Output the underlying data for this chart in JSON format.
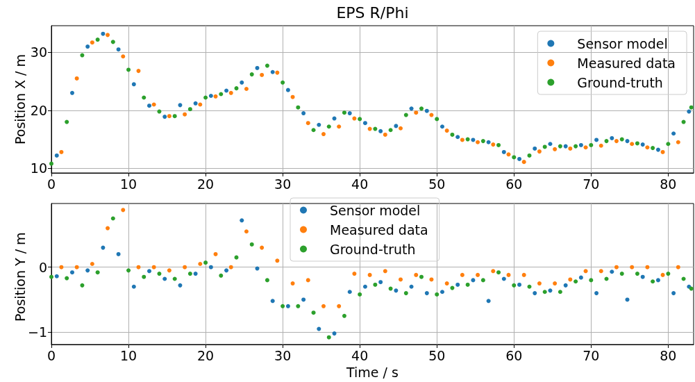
{
  "chart_data": [
    {
      "type": "scatter",
      "title": "EPS R/Phi",
      "ylabel": "Position X / m",
      "marker": "circle",
      "grid": true,
      "legend": "top right",
      "xlim": [
        0,
        83.3
      ],
      "xticks": [
        0,
        10,
        20,
        30,
        40,
        50,
        60,
        70,
        80
      ],
      "ylim": [
        9.2,
        34.6
      ],
      "yticks": [
        10,
        20,
        30
      ],
      "series": [
        {
          "name": "Sensor model",
          "color": "#1f77b4",
          "x": [
            0.7,
            2.7,
            4.7,
            6.7,
            8.7,
            10.7,
            12.7,
            14.7,
            16.7,
            18.7,
            20.7,
            22.7,
            24.7,
            26.7,
            28.7,
            30.7,
            32.7,
            34.7,
            36.7,
            38.7,
            40.7,
            42.7,
            44.7,
            46.7,
            48.7,
            50.7,
            52.7,
            54.7,
            56.7,
            58.7,
            60.7,
            62.7,
            64.7,
            66.7,
            68.7,
            70.7,
            72.7,
            74.7,
            76.7,
            78.7,
            80.7,
            82.7
          ],
          "values": [
            12.2,
            23,
            31,
            33.2,
            30.5,
            24.5,
            20.8,
            18.9,
            20.9,
            21.2,
            22.5,
            23.4,
            24.8,
            27.3,
            26.6,
            23.5,
            19.5,
            17.5,
            18.6,
            19.5,
            17.8,
            16.4,
            17.3,
            20.3,
            19.9,
            17.2,
            15.4,
            14.9,
            14.5,
            12.8,
            11.6,
            13.4,
            14.2,
            13.8,
            14,
            14.9,
            15.2,
            14.7,
            14.1,
            13.2,
            16,
            19.8
          ]
        },
        {
          "name": "Measured data",
          "color": "#ff7f0e",
          "x": [
            1.3,
            3.3,
            5.3,
            7.3,
            9.3,
            11.3,
            13.3,
            15.3,
            17.3,
            19.3,
            21.3,
            23.3,
            25.3,
            27.3,
            29.3,
            31.3,
            33.3,
            35.3,
            37.3,
            39.3,
            41.3,
            43.3,
            45.3,
            47.3,
            49.3,
            51.3,
            53.3,
            55.3,
            57.3,
            59.3,
            61.3,
            63.3,
            65.3,
            67.3,
            69.3,
            71.3,
            73.3,
            75.3,
            77.3,
            79.3,
            81.3
          ],
          "values": [
            12.8,
            25.5,
            31.7,
            33,
            29.3,
            26.8,
            21,
            19,
            19.3,
            21,
            22.4,
            23,
            23.7,
            26.1,
            26.5,
            22.3,
            17.8,
            15.9,
            17.2,
            18.6,
            16.8,
            15.8,
            16.9,
            19.6,
            19.2,
            16.5,
            14.9,
            14.5,
            14.1,
            12.4,
            11.1,
            12.9,
            13.3,
            13.4,
            13.6,
            13.9,
            14.7,
            14.2,
            13.6,
            12.8,
            14.5
          ]
        },
        {
          "name": "Ground-truth",
          "color": "#2ca02c",
          "x": [
            0,
            2,
            4,
            6,
            8,
            10,
            12,
            14,
            16,
            18,
            20,
            22,
            24,
            26,
            28,
            30,
            32,
            34,
            36,
            38,
            40,
            42,
            44,
            46,
            48,
            50,
            52,
            54,
            56,
            58,
            60,
            62,
            64,
            66,
            68,
            70,
            72,
            74,
            76,
            78,
            80,
            82,
            83
          ],
          "values": [
            10.8,
            18,
            29.5,
            32.2,
            31.8,
            27,
            22.2,
            19.8,
            19,
            20.2,
            22.2,
            22.8,
            23.8,
            26.2,
            27.7,
            24.8,
            20.5,
            16.6,
            17.2,
            19.6,
            18.5,
            16.8,
            16.6,
            19.2,
            20.3,
            18.5,
            15.8,
            15,
            14.7,
            14,
            11.9,
            12.2,
            13.7,
            13.8,
            13.8,
            14,
            14.7,
            15,
            14.3,
            13.5,
            14.2,
            18,
            20.5
          ]
        }
      ]
    },
    {
      "type": "scatter",
      "xlabel": "Time / s",
      "ylabel": "Position Y / m",
      "marker": "circle",
      "grid": true,
      "legend": "top",
      "xlim": [
        0,
        83.3
      ],
      "xticks": [
        0,
        10,
        20,
        30,
        40,
        50,
        60,
        70,
        80
      ],
      "ylim": [
        -1.19,
        0.98
      ],
      "yticks": [
        {
          "value": -1,
          "label": "−1"
        },
        0
      ],
      "series": [
        {
          "name": "Sensor model",
          "color": "#1f77b4",
          "x": [
            0.7,
            2.7,
            4.7,
            6.7,
            8.7,
            10.7,
            12.7,
            14.7,
            16.7,
            18.7,
            20.7,
            22.7,
            24.7,
            26.7,
            28.7,
            30.7,
            32.7,
            34.7,
            36.7,
            38.7,
            40.7,
            42.7,
            44.7,
            46.7,
            48.7,
            50.7,
            52.7,
            54.7,
            56.7,
            58.7,
            60.7,
            62.7,
            64.7,
            66.7,
            68.7,
            70.7,
            72.7,
            74.7,
            76.7,
            78.7,
            80.7,
            82.7
          ],
          "values": [
            -0.14,
            -0.08,
            -0.05,
            0.3,
            0.2,
            -0.3,
            -0.06,
            -0.18,
            -0.28,
            -0.1,
            0,
            -0.05,
            0.72,
            -0.02,
            -0.52,
            -0.6,
            -0.5,
            -0.95,
            -1.02,
            -0.38,
            -0.3,
            -0.23,
            -0.36,
            -0.3,
            -0.4,
            -0.38,
            -0.27,
            -0.2,
            -0.52,
            -0.18,
            -0.27,
            -0.4,
            -0.36,
            -0.28,
            -0.16,
            -0.4,
            -0.07,
            -0.5,
            -0.15,
            -0.2,
            -0.4,
            -0.3
          ]
        },
        {
          "name": "Measured data",
          "color": "#ff7f0e",
          "x": [
            1.3,
            3.3,
            5.3,
            7.3,
            9.3,
            11.3,
            13.3,
            15.3,
            17.3,
            19.3,
            21.3,
            23.3,
            25.3,
            27.3,
            29.3,
            31.3,
            33.3,
            35.3,
            37.3,
            39.3,
            41.3,
            43.3,
            45.3,
            47.3,
            49.3,
            51.3,
            53.3,
            55.3,
            57.3,
            59.3,
            61.3,
            63.3,
            65.3,
            67.3,
            69.3,
            71.3,
            73.3,
            75.3,
            77.3,
            79.3,
            81.3
          ],
          "values": [
            0,
            0,
            0.05,
            0.6,
            0.88,
            0,
            0,
            -0.05,
            0,
            0.05,
            0.2,
            0,
            0.55,
            0.3,
            0.1,
            -0.25,
            -0.2,
            -0.6,
            -0.6,
            -0.1,
            -0.12,
            -0.06,
            -0.19,
            -0.12,
            -0.19,
            -0.25,
            -0.12,
            -0.12,
            -0.06,
            -0.12,
            -0.12,
            -0.25,
            -0.25,
            -0.19,
            -0.06,
            -0.06,
            0,
            0,
            0,
            -0.12,
            0
          ]
        },
        {
          "name": "Ground-truth",
          "color": "#2ca02c",
          "x": [
            0,
            2,
            4,
            6,
            8,
            10,
            12,
            14,
            16,
            18,
            20,
            22,
            24,
            26,
            28,
            30,
            32,
            34,
            36,
            38,
            40,
            42,
            44,
            46,
            48,
            50,
            52,
            54,
            56,
            58,
            60,
            62,
            64,
            66,
            68,
            70,
            72,
            74,
            76,
            78,
            80,
            82,
            83
          ],
          "values": [
            -0.15,
            -0.17,
            -0.28,
            -0.08,
            0.75,
            -0.05,
            -0.15,
            -0.1,
            -0.18,
            -0.1,
            0.07,
            -0.13,
            0.15,
            0.35,
            -0.2,
            -0.6,
            -0.6,
            -0.7,
            -1.08,
            -0.75,
            -0.42,
            -0.27,
            -0.33,
            -0.4,
            -0.15,
            -0.42,
            -0.32,
            -0.27,
            -0.2,
            -0.08,
            -0.28,
            -0.3,
            -0.38,
            -0.38,
            -0.22,
            -0.2,
            -0.18,
            -0.1,
            -0.1,
            -0.22,
            -0.1,
            -0.18,
            -0.33
          ]
        }
      ]
    }
  ]
}
